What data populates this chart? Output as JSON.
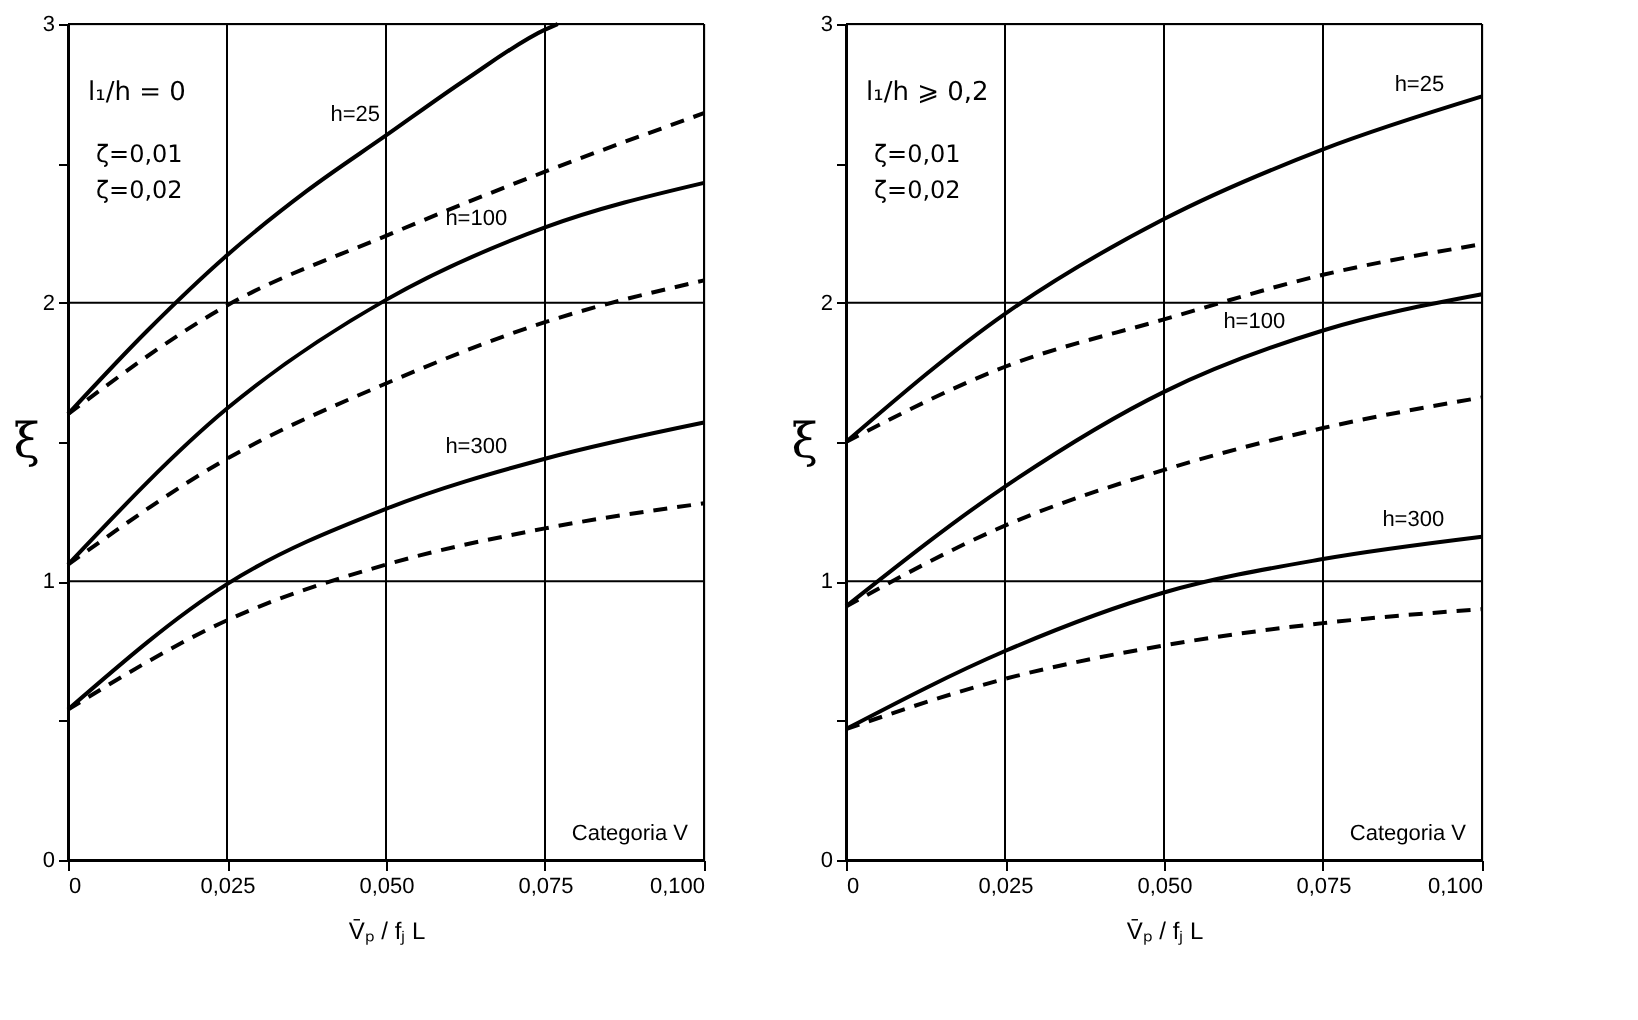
{
  "chart_data": [
    {
      "type": "line",
      "xlabel": "V̄ₚ / fⱼ L",
      "ylabel": "ξ",
      "xlim": [
        0,
        0.1
      ],
      "ylim": [
        0,
        3
      ],
      "xticks": [
        0,
        {
          "value": 0.025,
          "label": "0,025"
        },
        {
          "value": 0.05,
          "label": "0,050"
        },
        {
          "value": 0.075,
          "label": "0,075"
        },
        {
          "value": 0.1,
          "label": "0,100"
        }
      ],
      "yticks": [
        0,
        {
          "value": 0.5,
          "label": null
        },
        1,
        {
          "value": 1.5,
          "label": null
        },
        2,
        {
          "value": 2.5,
          "label": null
        },
        3
      ],
      "grid": true,
      "marker": "none",
      "series": [
        {
          "color": "#000000",
          "line_style": "solid",
          "x": [
            0,
            0.0125,
            0.025,
            0.0375,
            0.05,
            0.0625,
            0.075,
            0.077
          ],
          "values": [
            1.6,
            1.9,
            2.17,
            2.4,
            2.6,
            2.8,
            2.98,
            3.0
          ]
        },
        {
          "color": "#000000",
          "line_style": "dashed",
          "x": [
            0,
            0.025,
            0.05,
            0.075,
            0.1
          ],
          "values": [
            1.6,
            1.99,
            2.24,
            2.47,
            2.68
          ]
        },
        {
          "color": "#000000",
          "line_style": "solid",
          "x": [
            0,
            0.025,
            0.05,
            0.075,
            0.1
          ],
          "values": [
            1.06,
            1.62,
            2.01,
            2.27,
            2.43
          ]
        },
        {
          "color": "#000000",
          "line_style": "dashed",
          "x": [
            0,
            0.025,
            0.05,
            0.075,
            0.1
          ],
          "values": [
            1.06,
            1.44,
            1.71,
            1.93,
            2.08
          ]
        },
        {
          "color": "#000000",
          "line_style": "solid",
          "x": [
            0,
            0.025,
            0.05,
            0.075,
            0.1
          ],
          "values": [
            0.54,
            0.99,
            1.26,
            1.44,
            1.57
          ]
        },
        {
          "color": "#000000",
          "line_style": "dashed",
          "x": [
            0,
            0.025,
            0.05,
            0.075,
            0.1
          ],
          "values": [
            0.54,
            0.86,
            1.06,
            1.19,
            1.28
          ]
        }
      ],
      "annotations": [
        "l₁/h = 0",
        "ζ=0,01",
        "ζ=0,02",
        {
          "text": "h=25",
          "x": 0.05,
          "y": 2.6
        },
        {
          "text": "h=100",
          "x": 0.07,
          "y": 2.23
        },
        {
          "text": "h=300",
          "x": 0.07,
          "y": 1.41
        },
        "Categoria V"
      ]
    },
    {
      "type": "line",
      "xlabel": "V̄ₚ / fⱼ L",
      "ylabel": "ξ",
      "xlim": [
        0,
        0.1
      ],
      "ylim": [
        0,
        3
      ],
      "xticks": [
        0,
        {
          "value": 0.025,
          "label": "0,025"
        },
        {
          "value": 0.05,
          "label": "0,050"
        },
        {
          "value": 0.075,
          "label": "0,075"
        },
        {
          "value": 0.1,
          "label": "0,100"
        }
      ],
      "yticks": [
        0,
        {
          "value": 0.5,
          "label": null
        },
        1,
        {
          "value": 1.5,
          "label": null
        },
        2,
        {
          "value": 2.5,
          "label": null
        },
        3
      ],
      "grid": true,
      "marker": "none",
      "series": [
        {
          "color": "#000000",
          "line_style": "solid",
          "x": [
            0,
            0.025,
            0.05,
            0.075,
            0.1
          ],
          "values": [
            1.5,
            1.96,
            2.3,
            2.55,
            2.74
          ]
        },
        {
          "color": "#000000",
          "line_style": "dashed",
          "x": [
            0,
            0.025,
            0.05,
            0.075,
            0.1
          ],
          "values": [
            1.5,
            1.77,
            1.94,
            2.1,
            2.21
          ]
        },
        {
          "color": "#000000",
          "line_style": "solid",
          "x": [
            0,
            0.025,
            0.05,
            0.075,
            0.1
          ],
          "values": [
            0.91,
            1.34,
            1.68,
            1.9,
            2.03
          ]
        },
        {
          "color": "#000000",
          "line_style": "dashed",
          "x": [
            0,
            0.025,
            0.05,
            0.075,
            0.1
          ],
          "values": [
            0.91,
            1.2,
            1.4,
            1.55,
            1.66
          ]
        },
        {
          "color": "#000000",
          "line_style": "solid",
          "x": [
            0,
            0.025,
            0.05,
            0.075,
            0.1
          ],
          "values": [
            0.47,
            0.75,
            0.96,
            1.08,
            1.16
          ]
        },
        {
          "color": "#000000",
          "line_style": "dashed",
          "x": [
            0,
            0.025,
            0.05,
            0.075,
            0.1
          ],
          "values": [
            0.47,
            0.65,
            0.77,
            0.85,
            0.9
          ]
        }
      ],
      "annotations": [
        "l₁/h ⩾ 0,2",
        "ζ=0,01",
        "ζ=0,02",
        {
          "text": "h=25",
          "x": 0.095,
          "y": 2.71
        },
        {
          "text": "h=100",
          "x": 0.07,
          "y": 1.86
        },
        {
          "text": "h=300",
          "x": 0.095,
          "y": 1.15
        },
        "Categoria V"
      ]
    }
  ]
}
